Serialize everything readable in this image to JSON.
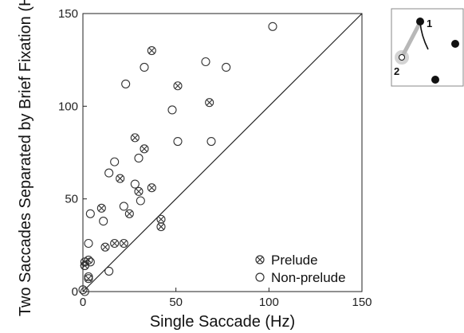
{
  "chart_data": {
    "type": "scatter",
    "xlabel": "Single Saccade (Hz)",
    "ylabel": "Two Saccades Separated by Brief Fixation (Hz)",
    "xlim": [
      0,
      150
    ],
    "ylim": [
      0,
      150
    ],
    "xticks": [
      "0",
      "50",
      "100",
      "150"
    ],
    "yticks": [
      "0",
      "50",
      "100",
      "150"
    ],
    "grid": false,
    "legend_position": "bottom-right",
    "identity_line": true,
    "series": [
      {
        "name": "Prelude",
        "marker": "circle-x",
        "points": [
          [
            37,
            130
          ],
          [
            28,
            83
          ],
          [
            51,
            111
          ],
          [
            68,
            102
          ],
          [
            33,
            77
          ],
          [
            10,
            45
          ],
          [
            20,
            61
          ],
          [
            30,
            54
          ],
          [
            37,
            56
          ],
          [
            25,
            42
          ],
          [
            42,
            39
          ],
          [
            42,
            35
          ],
          [
            17,
            26
          ],
          [
            22,
            26
          ],
          [
            12,
            24
          ],
          [
            3,
            17
          ],
          [
            1,
            16
          ],
          [
            1,
            14
          ],
          [
            3,
            7
          ]
        ]
      },
      {
        "name": "Non-prelude",
        "marker": "circle",
        "points": [
          [
            102,
            143
          ],
          [
            23,
            112
          ],
          [
            33,
            121
          ],
          [
            66,
            124
          ],
          [
            77,
            121
          ],
          [
            48,
            98
          ],
          [
            69,
            81
          ],
          [
            51,
            81
          ],
          [
            17,
            70
          ],
          [
            30,
            72
          ],
          [
            14,
            64
          ],
          [
            28,
            58
          ],
          [
            22,
            46
          ],
          [
            31,
            49
          ],
          [
            4,
            42
          ],
          [
            11,
            38
          ],
          [
            3,
            26
          ],
          [
            4,
            16
          ],
          [
            1,
            14
          ],
          [
            14,
            11
          ],
          [
            3,
            8
          ],
          [
            0,
            1
          ],
          [
            1,
            0
          ]
        ]
      }
    ]
  },
  "inset": {
    "labels": [
      "1",
      "2"
    ]
  }
}
